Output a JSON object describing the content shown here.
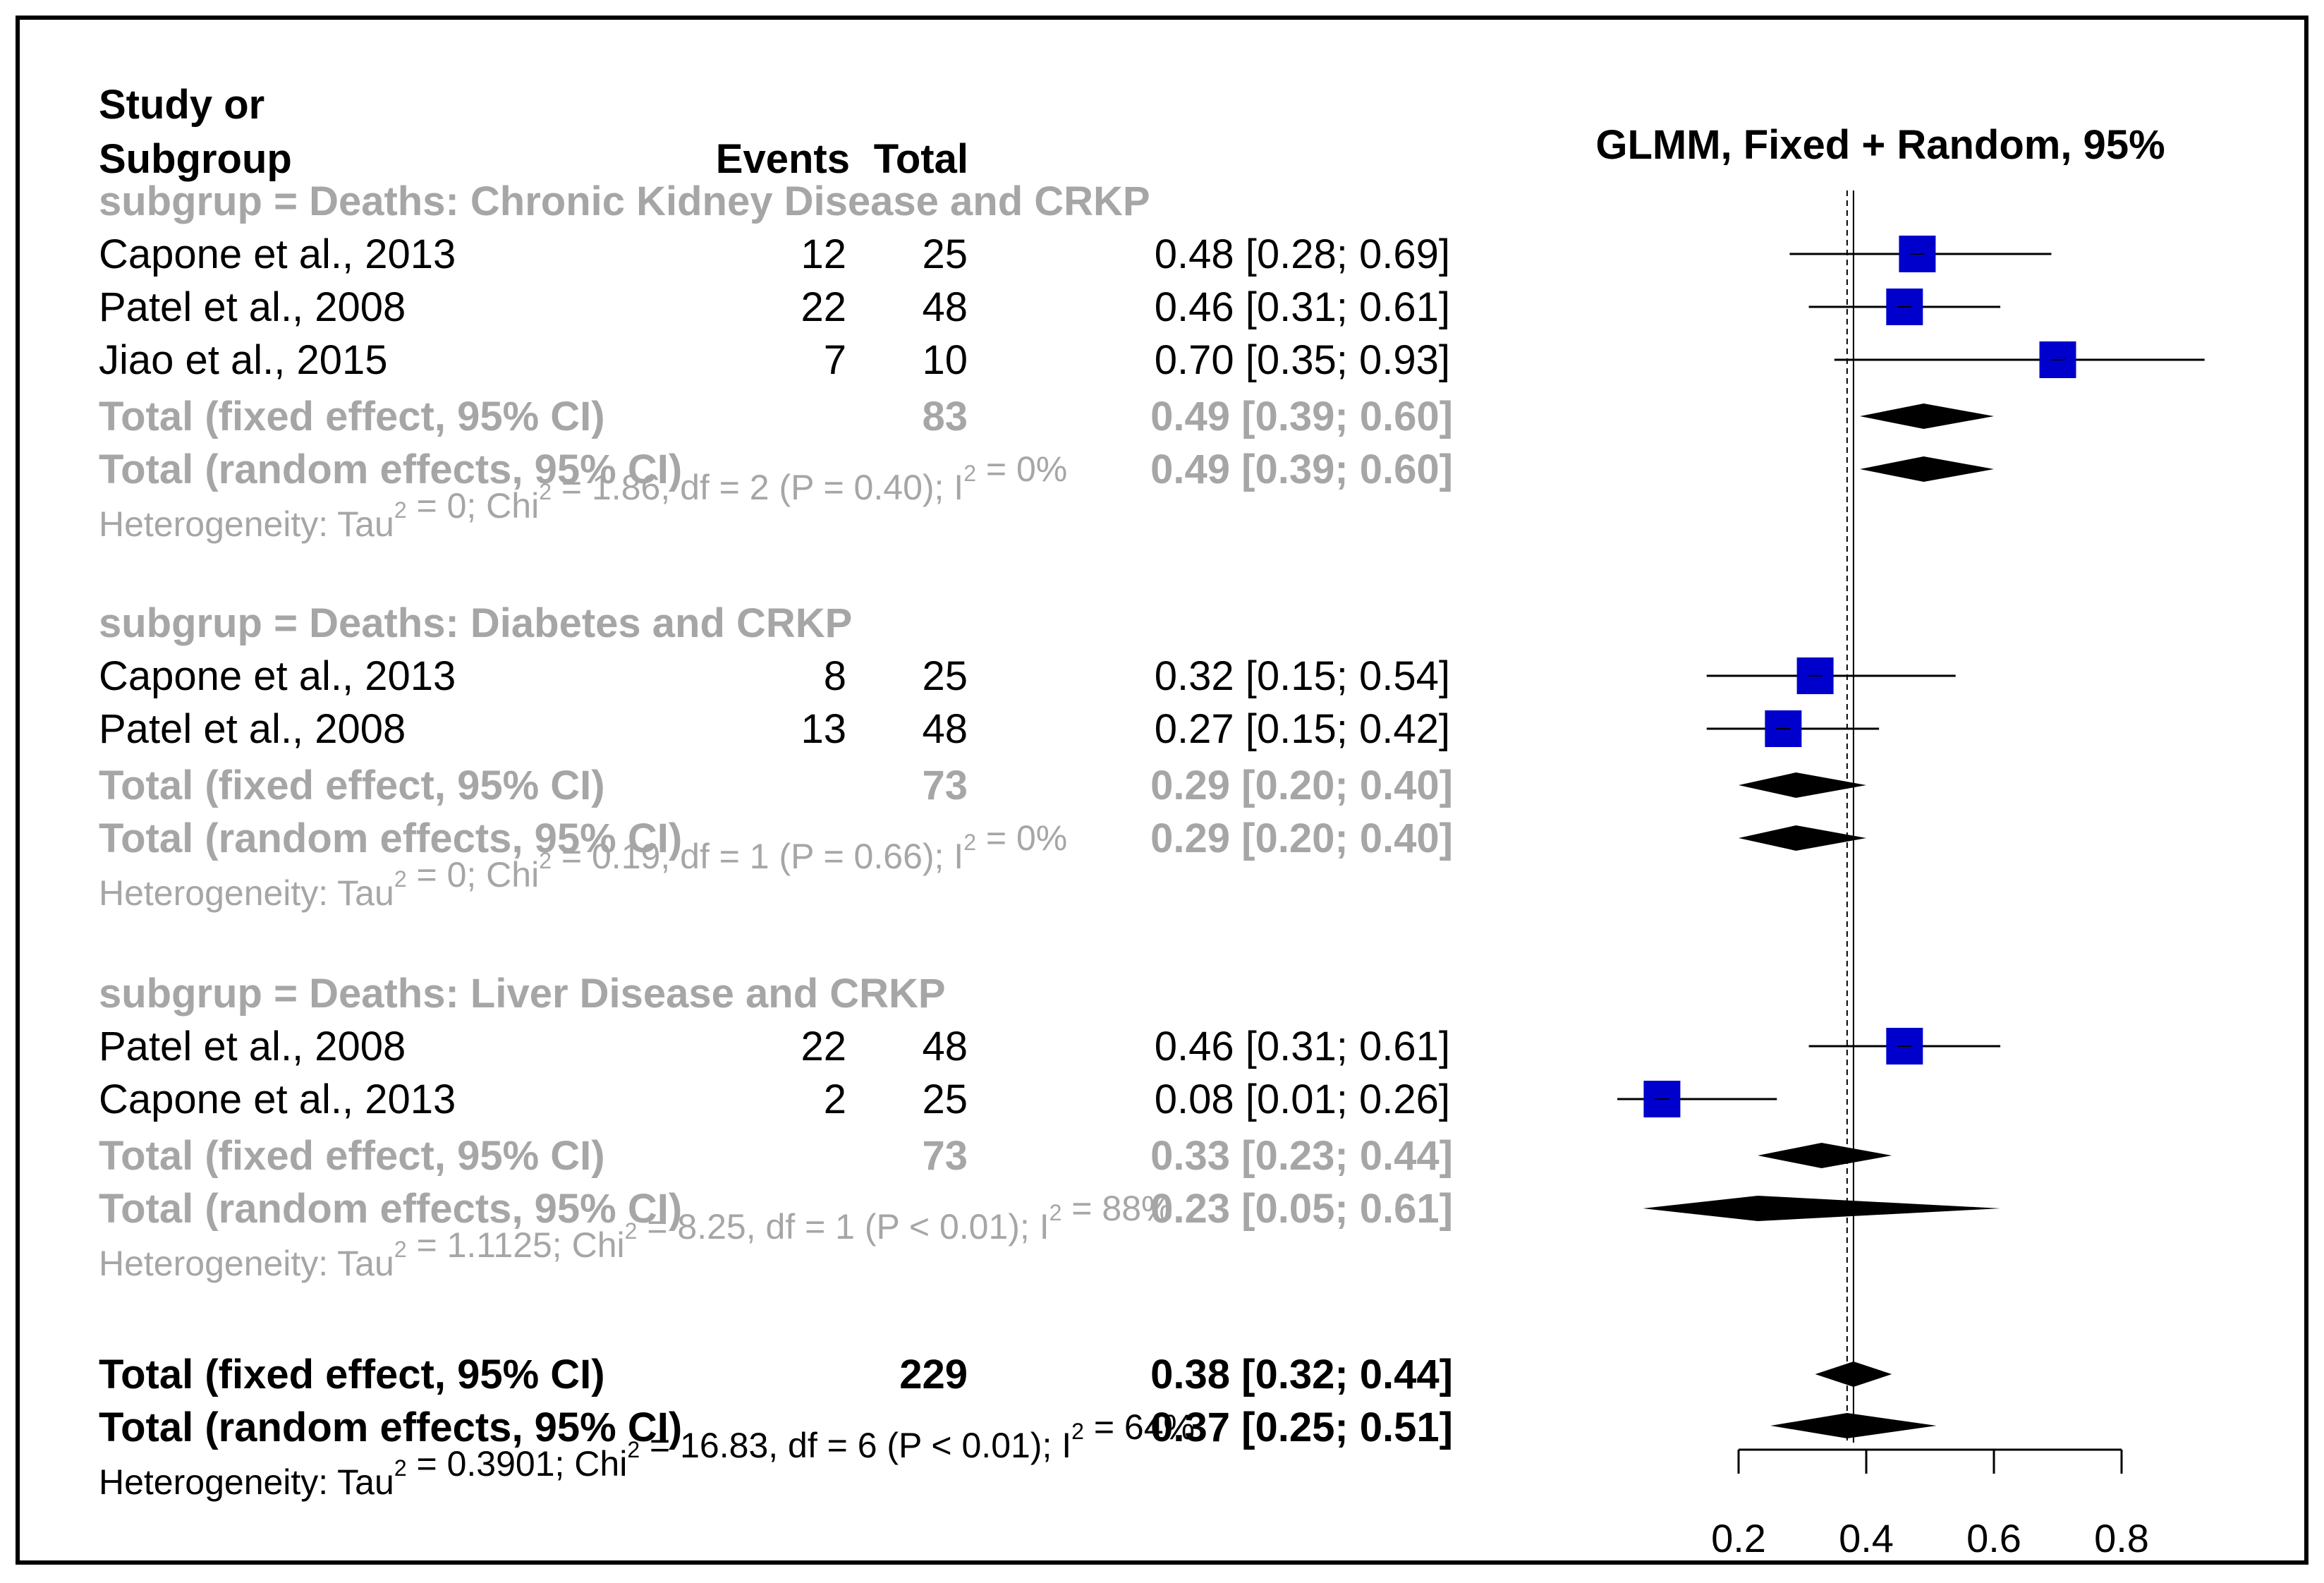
{
  "chart_data": {
    "type": "forest",
    "title": "GLMM, Fixed + Random, 95%",
    "columns": {
      "study_line1": "Study or",
      "study_line2": "Subgroup",
      "events": "Events",
      "total": "Total"
    },
    "xlim": [
      0.2,
      0.8
    ],
    "xticks": [
      "0.2",
      "0.4",
      "0.6",
      "0.8"
    ],
    "fixed_line": 0.38,
    "random_line": 0.37,
    "subgroups": [
      {
        "label": "subgrup = Deaths: Chronic Kidney Disease and CRKP",
        "studies": [
          {
            "name": "Capone et al., 2013",
            "events": "12",
            "total": "25",
            "est": 0.48,
            "lo": 0.28,
            "hi": 0.69,
            "ci_text": "0.48 [0.28; 0.69]"
          },
          {
            "name": "Patel et al., 2008",
            "events": "22",
            "total": "48",
            "est": 0.46,
            "lo": 0.31,
            "hi": 0.61,
            "ci_text": "0.46 [0.31; 0.61]"
          },
          {
            "name": "Jiao et al., 2015",
            "events": "7",
            "total": "10",
            "est": 0.7,
            "lo": 0.35,
            "hi": 0.93,
            "ci_text": "0.70 [0.35; 0.93]"
          }
        ],
        "fixed": {
          "label": "Total (fixed effect, 95% CI)",
          "total": "83",
          "est": 0.49,
          "lo": 0.39,
          "hi": 0.6,
          "ci_text": "0.49 [0.39; 0.60]"
        },
        "random": {
          "label": "Total (random effects, 95% CI)",
          "est": 0.49,
          "lo": 0.39,
          "hi": 0.6,
          "ci_text": "0.49 [0.39; 0.60]"
        },
        "het": {
          "pre": "Heterogeneity: Tau",
          "mid1": " = 0; Chi",
          "mid2": " = 1.86, df = 2 (P = 0.40); I",
          "post": " = 0%",
          "sup": "2"
        }
      },
      {
        "label": "subgrup = Deaths: Diabetes and CRKP",
        "studies": [
          {
            "name": "Capone et al., 2013",
            "events": "8",
            "total": "25",
            "est": 0.32,
            "lo": 0.15,
            "hi": 0.54,
            "ci_text": "0.32 [0.15; 0.54]"
          },
          {
            "name": "Patel et al., 2008",
            "events": "13",
            "total": "48",
            "est": 0.27,
            "lo": 0.15,
            "hi": 0.42,
            "ci_text": "0.27 [0.15; 0.42]"
          }
        ],
        "fixed": {
          "label": "Total (fixed effect, 95% CI)",
          "total": "73",
          "est": 0.29,
          "lo": 0.2,
          "hi": 0.4,
          "ci_text": "0.29 [0.20; 0.40]"
        },
        "random": {
          "label": "Total (random effects, 95% CI)",
          "est": 0.29,
          "lo": 0.2,
          "hi": 0.4,
          "ci_text": "0.29 [0.20; 0.40]"
        },
        "het": {
          "pre": "Heterogeneity: Tau",
          "mid1": " = 0; Chi",
          "mid2": " = 0.19, df = 1 (P = 0.66); I",
          "post": " = 0%",
          "sup": "2"
        }
      },
      {
        "label": "subgrup = Deaths: Liver Disease and CRKP",
        "studies": [
          {
            "name": "Patel et al., 2008",
            "events": "22",
            "total": "48",
            "est": 0.46,
            "lo": 0.31,
            "hi": 0.61,
            "ci_text": "0.46 [0.31; 0.61]"
          },
          {
            "name": "Capone et al., 2013",
            "events": "2",
            "total": "25",
            "est": 0.08,
            "lo": 0.01,
            "hi": 0.26,
            "ci_text": "0.08 [0.01; 0.26]"
          }
        ],
        "fixed": {
          "label": "Total (fixed effect, 95% CI)",
          "total": "73",
          "est": 0.33,
          "lo": 0.23,
          "hi": 0.44,
          "ci_text": "0.33 [0.23; 0.44]"
        },
        "random": {
          "label": "Total (random effects, 95% CI)",
          "est": 0.23,
          "lo": 0.05,
          "hi": 0.61,
          "ci_text": "0.23 [0.05; 0.61]"
        },
        "het": {
          "pre": "Heterogeneity: Tau",
          "mid1": " = 1.1125; Chi",
          "mid2": " = 8.25, df = 1 (P < 0.01); I",
          "post": " = 88%",
          "sup": "2"
        }
      }
    ],
    "overall": {
      "fixed": {
        "label": "Total (fixed effect, 95% CI)",
        "total": "229",
        "est": 0.38,
        "lo": 0.32,
        "hi": 0.44,
        "ci_text": "0.38 [0.32; 0.44]"
      },
      "random": {
        "label": "Total (random effects, 95% CI)",
        "est": 0.37,
        "lo": 0.25,
        "hi": 0.51,
        "ci_text": "0.37 [0.25; 0.51]"
      },
      "het": {
        "pre": "Heterogeneity: Tau",
        "mid1": " = 0.3901; Chi",
        "mid2": " = 16.83, df = 6 (P < 0.01); I",
        "post": " = 64%",
        "sup": "2"
      }
    }
  },
  "colors": {
    "square": "#0000cc",
    "grey_text": "#a6a6a6",
    "black": "#000000"
  }
}
